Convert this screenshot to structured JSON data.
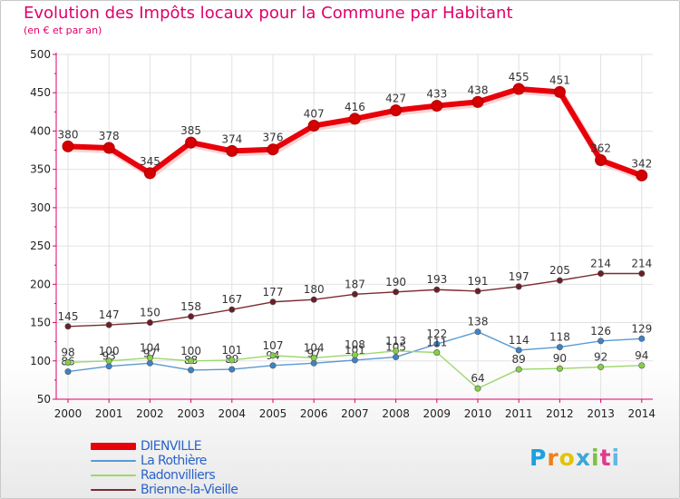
{
  "title": "Evolution des Impôts locaux pour la Commune par Habitant",
  "subtitle": "(en € et par an)",
  "logo": {
    "text": "Proxiti",
    "letter_colors": [
      "#1aa1e0",
      "#f07f1a",
      "#e2c400",
      "#3aa7d6",
      "#7cc242",
      "#e03a8d",
      "#62b9e6"
    ]
  },
  "chart_data": {
    "type": "line",
    "title": "Evolution des Impôts locaux pour la Commune par Habitant",
    "subtitle": "(en € et par an)",
    "x": [
      "2000",
      "2001",
      "2002",
      "2003",
      "2004",
      "2005",
      "2006",
      "2007",
      "2008",
      "2009",
      "2010",
      "2011",
      "2012",
      "2013",
      "2014"
    ],
    "ylim": [
      50,
      500
    ],
    "yticks": [
      50,
      100,
      150,
      200,
      250,
      300,
      350,
      400,
      450,
      500
    ],
    "grid": true,
    "legend_position": "bottom-left",
    "series": [
      {
        "name": "DIENVILLE",
        "color": "#e8000b",
        "marker_color": "#d40000",
        "emphasis": true,
        "values": [
          380,
          378,
          345,
          385,
          374,
          376,
          407,
          416,
          427,
          433,
          438,
          455,
          451,
          362,
          342
        ],
        "labels": [
          "380",
          "378",
          "345",
          "385",
          "374",
          "376",
          "407",
          "416",
          "427",
          "433",
          "438",
          "455",
          "451",
          "362",
          "342"
        ]
      },
      {
        "name": "La Rothière",
        "color": "#5a9ad2",
        "marker_color": "#3c83c8",
        "emphasis": false,
        "values": [
          86,
          93,
          97,
          88,
          89,
          94,
          97,
          101,
          105,
          122,
          138,
          114,
          118,
          126,
          129
        ],
        "labels": [
          "86",
          "93",
          "97",
          "88",
          "89",
          "94",
          "97",
          "101",
          "105",
          "122",
          "138",
          "114",
          "118",
          "126",
          "129"
        ]
      },
      {
        "name": "Radonvilliers",
        "color": "#9bd86a",
        "marker_color": "#86d046",
        "emphasis": false,
        "values": [
          98,
          100,
          104,
          100,
          101,
          107,
          104,
          108,
          113,
          111,
          64,
          89,
          90,
          92,
          94
        ],
        "labels": [
          "98",
          "100",
          "104",
          "100",
          "101",
          "107",
          "104",
          "108",
          "113",
          "111",
          "64",
          "89",
          "90",
          "92",
          "94"
        ]
      },
      {
        "name": "Brienne-la-Vieille",
        "color": "#7b2a31",
        "marker_color": "#6a1f26",
        "emphasis": false,
        "values": [
          145,
          147,
          150,
          158,
          167,
          177,
          180,
          187,
          190,
          193,
          191,
          197,
          205,
          214,
          214
        ],
        "labels": [
          "145",
          "147",
          "150",
          "158",
          "167",
          "177",
          "180",
          "187",
          "190",
          "193",
          "191",
          "197",
          "205",
          "214",
          "214"
        ]
      }
    ]
  }
}
